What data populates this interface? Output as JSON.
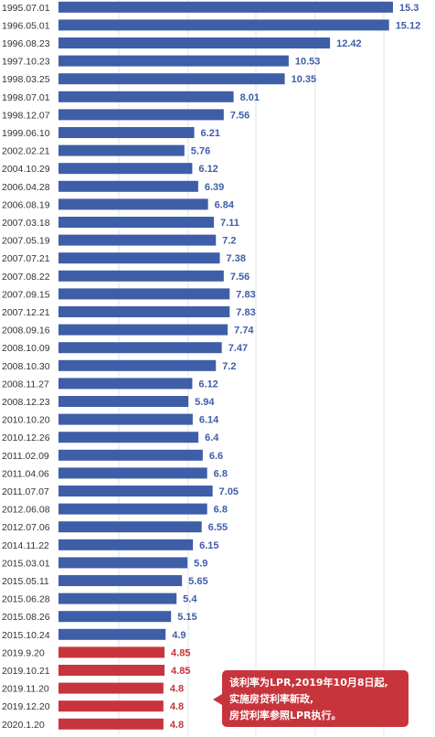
{
  "chart_data": {
    "type": "bar",
    "orientation": "horizontal",
    "categories": [
      "1995.07.01",
      "1996.05.01",
      "1996.08.23",
      "1997.10.23",
      "1998.03.25",
      "1998.07.01",
      "1998.12.07",
      "1999.06.10",
      "2002.02.21",
      "2004.10.29",
      "2006.04.28",
      "2006.08.19",
      "2007.03.18",
      "2007.05.19",
      "2007.07.21",
      "2007.08.22",
      "2007.09.15",
      "2007.12.21",
      "2008.09.16",
      "2008.10.09",
      "2008.10.30",
      "2008.11.27",
      "2008.12.23",
      "2010.10.20",
      "2010.12.26",
      "2011.02.09",
      "2011.04.06",
      "2011.07.07",
      "2012.06.08",
      "2012.07.06",
      "2014.11.22",
      "2015.03.01",
      "2015.05.11",
      "2015.06.28",
      "2015.08.26",
      "2015.10.24",
      "2019.9.20",
      "2019.10.21",
      "2019.11.20",
      "2019.12.20",
      "2020.1.20"
    ],
    "values": [
      15.3,
      15.12,
      12.42,
      10.53,
      10.35,
      8.01,
      7.56,
      6.21,
      5.76,
      6.12,
      6.39,
      6.84,
      7.11,
      7.2,
      7.38,
      7.56,
      7.83,
      7.83,
      7.74,
      7.47,
      7.2,
      6.12,
      5.94,
      6.14,
      6.4,
      6.6,
      6.8,
      7.05,
      6.8,
      6.55,
      6.15,
      5.9,
      5.65,
      5.4,
      5.15,
      4.9,
      4.85,
      4.85,
      4.8,
      4.8,
      4.8
    ],
    "value_labels": [
      "15.3",
      "15.12",
      "12.42",
      "10.53",
      "10.35",
      "8.01",
      "7.56",
      "6.21",
      "5.76",
      "6.12",
      "6.39",
      "6.84",
      "7.11",
      "7.2",
      "7.38",
      "7.56",
      "7.83",
      "7.83",
      "7.74",
      "7.47",
      "7.2",
      "6.12",
      "5.94",
      "6.14",
      "6.4",
      "6.6",
      "6.8",
      "7.05",
      "6.8",
      "6.55",
      "6.15",
      "5.9",
      "5.65",
      "5.4",
      "5.15",
      "4.9",
      "4.85",
      "4.85",
      "4.8",
      "4.8",
      "4.8"
    ],
    "highlight_from_index": 36,
    "xlim": [
      0,
      15.3
    ],
    "grid": true,
    "colors": {
      "base": "#3f5ea8",
      "highlight": "#c8343b",
      "grid": "#dde3ee"
    }
  },
  "callout": {
    "lines": [
      "该利率为LPR,2019年10月8日起,",
      "实施房贷利率新政,",
      "房贷利率参照LPR执行。"
    ]
  }
}
